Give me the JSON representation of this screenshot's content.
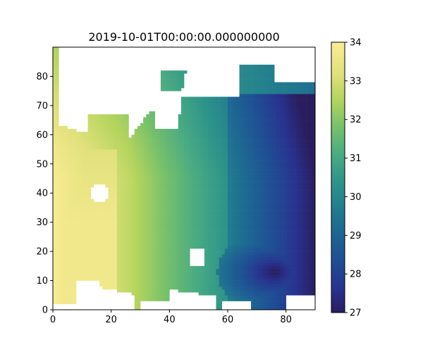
{
  "chart_data": {
    "type": "heatmap",
    "title": "2019-10-01T00:00:00.000000000",
    "xlabel": "",
    "ylabel": "",
    "xlim": [
      0,
      90
    ],
    "ylim": [
      0,
      90
    ],
    "x_ticks": [
      0,
      20,
      40,
      60,
      80
    ],
    "y_ticks": [
      0,
      10,
      20,
      30,
      40,
      50,
      60,
      70,
      80
    ],
    "colorbar": {
      "range": [
        27,
        34
      ],
      "ticks": [
        27,
        28,
        29,
        30,
        31,
        32,
        33,
        34
      ]
    },
    "colormap_stops": [
      {
        "value": 27.0,
        "color": "#2a1d5e"
      },
      {
        "value": 27.6,
        "color": "#28328f"
      },
      {
        "value": 28.3,
        "color": "#1f4d94"
      },
      {
        "value": 29.0,
        "color": "#1d6493"
      },
      {
        "value": 29.7,
        "color": "#217d8e"
      },
      {
        "value": 30.4,
        "color": "#2e948a"
      },
      {
        "value": 31.1,
        "color": "#4aab82"
      },
      {
        "value": 31.8,
        "color": "#76c06a"
      },
      {
        "value": 32.5,
        "color": "#b3d45d"
      },
      {
        "value": 33.2,
        "color": "#e1e17c"
      },
      {
        "value": 34.0,
        "color": "#fbec95"
      }
    ],
    "grid": false,
    "field_description": "Gridded salinity-like values: high (33-34) in the west/southwest, ~31-32 across the center, ~29-30 in the east, minimum ~27 in a band near the south-east coast; white cells are land/missing."
  }
}
